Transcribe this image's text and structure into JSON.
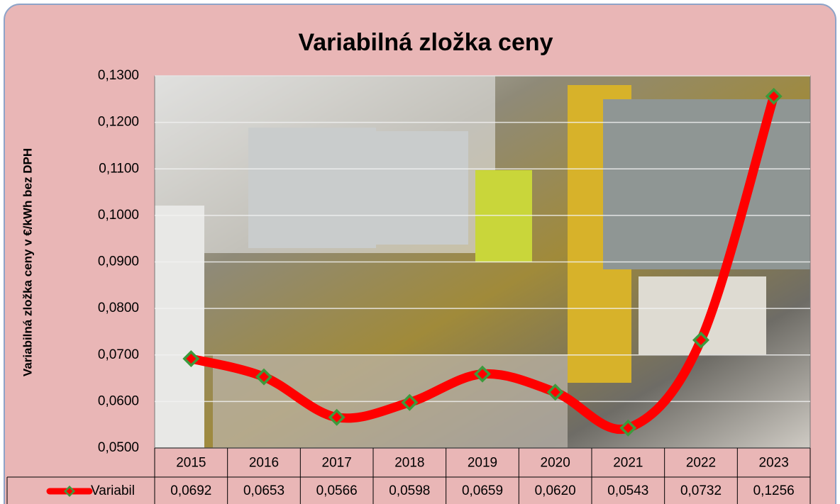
{
  "chart_data": {
    "type": "line",
    "title": "Variabilná zložka ceny",
    "y_label": "Variabilná zložka ceny v €/kWh bez DPH",
    "categories": [
      "2015",
      "2016",
      "2017",
      "2018",
      "2019",
      "2020",
      "2021",
      "2022",
      "2023"
    ],
    "series": [
      {
        "name": "Variabil",
        "color": "#ff0000",
        "marker_color": "#3c9a3c",
        "values": [
          0.0692,
          0.0653,
          0.0566,
          0.0598,
          0.0659,
          0.062,
          0.0543,
          0.0732,
          0.1256
        ],
        "value_labels": [
          "0,0692",
          "0,0653",
          "0,0566",
          "0,0598",
          "0,0659",
          "0,0620",
          "0,0543",
          "0,0732",
          "0,1256"
        ]
      }
    ],
    "ylim": [
      0.05,
      0.13
    ],
    "yticks": [
      {
        "value": 0.05,
        "label": "0,0500"
      },
      {
        "value": 0.06,
        "label": "0,0600"
      },
      {
        "value": 0.07,
        "label": "0,0700"
      },
      {
        "value": 0.08,
        "label": "0,0800"
      },
      {
        "value": 0.09,
        "label": "0,0900"
      },
      {
        "value": 0.1,
        "label": "0,1000"
      },
      {
        "value": 0.11,
        "label": "0,1100"
      },
      {
        "value": 0.12,
        "label": "0,1200"
      },
      {
        "value": 0.13,
        "label": "0,1300"
      }
    ],
    "grid": true,
    "smooth": true
  }
}
